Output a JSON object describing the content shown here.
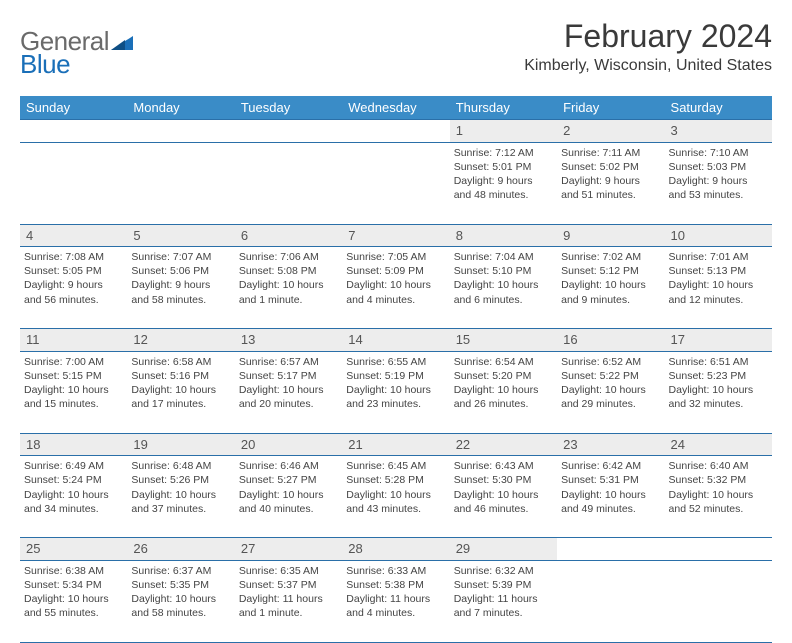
{
  "logo": {
    "general": "General",
    "blue": "Blue"
  },
  "title": "February 2024",
  "location": "Kimberly, Wisconsin, United States",
  "colors": {
    "header_bg": "#3a8cc7",
    "header_text": "#ffffff",
    "border": "#2a6fa8",
    "daynum_bg": "#ededed",
    "text": "#444444",
    "logo_gray": "#6a6a6a",
    "logo_blue": "#1a6fb8"
  },
  "weekdays": [
    "Sunday",
    "Monday",
    "Tuesday",
    "Wednesday",
    "Thursday",
    "Friday",
    "Saturday"
  ],
  "weeks": [
    [
      null,
      null,
      null,
      null,
      {
        "n": "1",
        "sunrise": "7:12 AM",
        "sunset": "5:01 PM",
        "d1": "Daylight: 9 hours",
        "d2": "and 48 minutes."
      },
      {
        "n": "2",
        "sunrise": "7:11 AM",
        "sunset": "5:02 PM",
        "d1": "Daylight: 9 hours",
        "d2": "and 51 minutes."
      },
      {
        "n": "3",
        "sunrise": "7:10 AM",
        "sunset": "5:03 PM",
        "d1": "Daylight: 9 hours",
        "d2": "and 53 minutes."
      }
    ],
    [
      {
        "n": "4",
        "sunrise": "7:08 AM",
        "sunset": "5:05 PM",
        "d1": "Daylight: 9 hours",
        "d2": "and 56 minutes."
      },
      {
        "n": "5",
        "sunrise": "7:07 AM",
        "sunset": "5:06 PM",
        "d1": "Daylight: 9 hours",
        "d2": "and 58 minutes."
      },
      {
        "n": "6",
        "sunrise": "7:06 AM",
        "sunset": "5:08 PM",
        "d1": "Daylight: 10 hours",
        "d2": "and 1 minute."
      },
      {
        "n": "7",
        "sunrise": "7:05 AM",
        "sunset": "5:09 PM",
        "d1": "Daylight: 10 hours",
        "d2": "and 4 minutes."
      },
      {
        "n": "8",
        "sunrise": "7:04 AM",
        "sunset": "5:10 PM",
        "d1": "Daylight: 10 hours",
        "d2": "and 6 minutes."
      },
      {
        "n": "9",
        "sunrise": "7:02 AM",
        "sunset": "5:12 PM",
        "d1": "Daylight: 10 hours",
        "d2": "and 9 minutes."
      },
      {
        "n": "10",
        "sunrise": "7:01 AM",
        "sunset": "5:13 PM",
        "d1": "Daylight: 10 hours",
        "d2": "and 12 minutes."
      }
    ],
    [
      {
        "n": "11",
        "sunrise": "7:00 AM",
        "sunset": "5:15 PM",
        "d1": "Daylight: 10 hours",
        "d2": "and 15 minutes."
      },
      {
        "n": "12",
        "sunrise": "6:58 AM",
        "sunset": "5:16 PM",
        "d1": "Daylight: 10 hours",
        "d2": "and 17 minutes."
      },
      {
        "n": "13",
        "sunrise": "6:57 AM",
        "sunset": "5:17 PM",
        "d1": "Daylight: 10 hours",
        "d2": "and 20 minutes."
      },
      {
        "n": "14",
        "sunrise": "6:55 AM",
        "sunset": "5:19 PM",
        "d1": "Daylight: 10 hours",
        "d2": "and 23 minutes."
      },
      {
        "n": "15",
        "sunrise": "6:54 AM",
        "sunset": "5:20 PM",
        "d1": "Daylight: 10 hours",
        "d2": "and 26 minutes."
      },
      {
        "n": "16",
        "sunrise": "6:52 AM",
        "sunset": "5:22 PM",
        "d1": "Daylight: 10 hours",
        "d2": "and 29 minutes."
      },
      {
        "n": "17",
        "sunrise": "6:51 AM",
        "sunset": "5:23 PM",
        "d1": "Daylight: 10 hours",
        "d2": "and 32 minutes."
      }
    ],
    [
      {
        "n": "18",
        "sunrise": "6:49 AM",
        "sunset": "5:24 PM",
        "d1": "Daylight: 10 hours",
        "d2": "and 34 minutes."
      },
      {
        "n": "19",
        "sunrise": "6:48 AM",
        "sunset": "5:26 PM",
        "d1": "Daylight: 10 hours",
        "d2": "and 37 minutes."
      },
      {
        "n": "20",
        "sunrise": "6:46 AM",
        "sunset": "5:27 PM",
        "d1": "Daylight: 10 hours",
        "d2": "and 40 minutes."
      },
      {
        "n": "21",
        "sunrise": "6:45 AM",
        "sunset": "5:28 PM",
        "d1": "Daylight: 10 hours",
        "d2": "and 43 minutes."
      },
      {
        "n": "22",
        "sunrise": "6:43 AM",
        "sunset": "5:30 PM",
        "d1": "Daylight: 10 hours",
        "d2": "and 46 minutes."
      },
      {
        "n": "23",
        "sunrise": "6:42 AM",
        "sunset": "5:31 PM",
        "d1": "Daylight: 10 hours",
        "d2": "and 49 minutes."
      },
      {
        "n": "24",
        "sunrise": "6:40 AM",
        "sunset": "5:32 PM",
        "d1": "Daylight: 10 hours",
        "d2": "and 52 minutes."
      }
    ],
    [
      {
        "n": "25",
        "sunrise": "6:38 AM",
        "sunset": "5:34 PM",
        "d1": "Daylight: 10 hours",
        "d2": "and 55 minutes."
      },
      {
        "n": "26",
        "sunrise": "6:37 AM",
        "sunset": "5:35 PM",
        "d1": "Daylight: 10 hours",
        "d2": "and 58 minutes."
      },
      {
        "n": "27",
        "sunrise": "6:35 AM",
        "sunset": "5:37 PM",
        "d1": "Daylight: 11 hours",
        "d2": "and 1 minute."
      },
      {
        "n": "28",
        "sunrise": "6:33 AM",
        "sunset": "5:38 PM",
        "d1": "Daylight: 11 hours",
        "d2": "and 4 minutes."
      },
      {
        "n": "29",
        "sunrise": "6:32 AM",
        "sunset": "5:39 PM",
        "d1": "Daylight: 11 hours",
        "d2": "and 7 minutes."
      },
      null,
      null
    ]
  ],
  "labels": {
    "sunrise": "Sunrise: ",
    "sunset": "Sunset: "
  }
}
